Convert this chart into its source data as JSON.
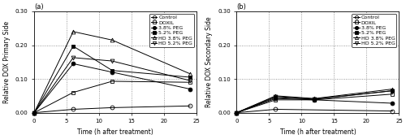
{
  "panel_a": {
    "title": "(a)",
    "ylabel": "Relative DOX Primary Side",
    "xlabel": "Time (h after treatment)",
    "xlim": [
      0,
      25
    ],
    "ylim": [
      0,
      0.3
    ],
    "yticks": [
      0.0,
      0.1,
      0.2,
      0.3
    ],
    "ytick_labels": [
      "0.00",
      "0.10",
      "0.20",
      "0.30"
    ],
    "xticks": [
      0,
      5,
      10,
      15,
      20,
      25
    ],
    "series": [
      {
        "label": "Control",
        "times": [
          0,
          6,
          12,
          24
        ],
        "values": [
          0.0,
          0.01,
          0.015,
          0.02
        ],
        "marker": "o",
        "fillstyle": "none",
        "linestyle": "-"
      },
      {
        "label": "DOXIL",
        "times": [
          0,
          6,
          12,
          24
        ],
        "values": [
          0.0,
          0.06,
          0.093,
          0.09
        ],
        "marker": "s",
        "fillstyle": "none",
        "linestyle": "-"
      },
      {
        "label": "3.8% PEG",
        "times": [
          0,
          6,
          12,
          24
        ],
        "values": [
          0.0,
          0.145,
          0.12,
          0.07
        ],
        "marker": "o",
        "fillstyle": "full",
        "linestyle": "-"
      },
      {
        "label": "5.2% PEG",
        "times": [
          0,
          6,
          12,
          24
        ],
        "values": [
          0.0,
          0.197,
          0.125,
          0.105
        ],
        "marker": "s",
        "fillstyle": "full",
        "linestyle": "-"
      },
      {
        "label": "HD 3.8% PEG",
        "times": [
          0,
          6,
          12,
          24
        ],
        "values": [
          0.0,
          0.24,
          0.215,
          0.115
        ],
        "marker": "^",
        "fillstyle": "none",
        "linestyle": "-"
      },
      {
        "label": "HD 5.2% PEG",
        "times": [
          0,
          6,
          12,
          24
        ],
        "values": [
          0.0,
          0.163,
          0.153,
          0.095
        ],
        "marker": "v",
        "fillstyle": "none",
        "linestyle": "-"
      }
    ],
    "hlines": [
      0.1,
      0.2
    ]
  },
  "panel_b": {
    "title": "(b)",
    "ylabel": "Relative DOX Secondary Side",
    "xlabel": "Time (h after treatment)",
    "xlim": [
      0,
      25
    ],
    "ylim": [
      0,
      0.3
    ],
    "yticks": [
      0.0,
      0.1,
      0.2,
      0.3
    ],
    "ytick_labels": [
      "0.00",
      "0.10",
      "0.20",
      "0.30"
    ],
    "xticks": [
      0,
      5,
      10,
      15,
      20,
      25
    ],
    "series": [
      {
        "label": "Control",
        "times": [
          0,
          6,
          24
        ],
        "values": [
          0.0,
          0.01,
          0.005
        ],
        "marker": "o",
        "fillstyle": "none",
        "linestyle": "-"
      },
      {
        "label": "DOXIL",
        "times": [
          0,
          6,
          12,
          24
        ],
        "values": [
          0.0,
          0.038,
          0.038,
          0.055
        ],
        "marker": "s",
        "fillstyle": "none",
        "linestyle": "-"
      },
      {
        "label": "3.8% PEG",
        "times": [
          0,
          6,
          12,
          24
        ],
        "values": [
          0.0,
          0.042,
          0.038,
          0.028
        ],
        "marker": "o",
        "fillstyle": "full",
        "linestyle": "-"
      },
      {
        "label": "5.2% PEG",
        "times": [
          0,
          6,
          12,
          24
        ],
        "values": [
          0.0,
          0.045,
          0.04,
          0.065
        ],
        "marker": "s",
        "fillstyle": "full",
        "linestyle": "-"
      },
      {
        "label": "HD 3.8% PEG",
        "times": [
          0,
          6,
          12,
          24
        ],
        "values": [
          0.0,
          0.05,
          0.042,
          0.07
        ],
        "marker": "^",
        "fillstyle": "none",
        "linestyle": "-"
      },
      {
        "label": "HD 5.2% PEG",
        "times": [
          0,
          6,
          12,
          24
        ],
        "values": [
          0.0,
          0.048,
          0.04,
          0.065
        ],
        "marker": "v",
        "fillstyle": "none",
        "linestyle": "-"
      }
    ],
    "hlines": [
      0.1,
      0.2
    ]
  },
  "background_color": "white",
  "legend_fontsize": 4.5,
  "axis_fontsize": 5.5,
  "tick_fontsize": 5.0,
  "title_fontsize": 6.0,
  "marker_size": 3.5,
  "linewidth": 0.7
}
